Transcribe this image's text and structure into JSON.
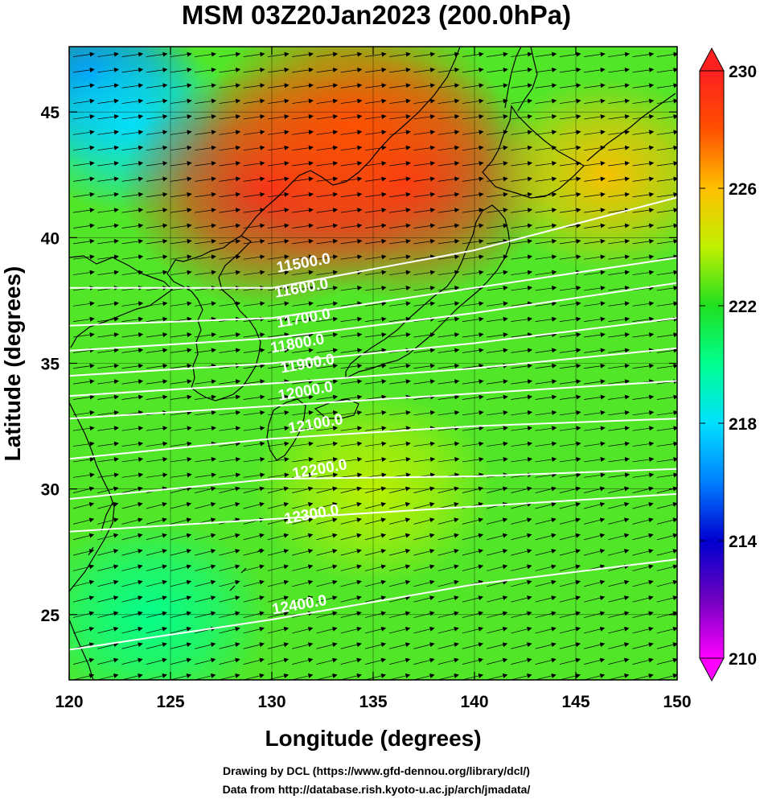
{
  "chart_data": {
    "type": "heatmap",
    "title": "MSM 03Z20Jan2023 (200.0hPa)",
    "xlabel": "Longitude (degrees)",
    "ylabel": "Latitude  (degrees)",
    "xlim": [
      120,
      150
    ],
    "ylim": [
      22.4,
      47.6
    ],
    "x_ticks": [
      120,
      125,
      130,
      135,
      140,
      145,
      150
    ],
    "y_ticks": [
      25,
      30,
      35,
      40,
      45
    ],
    "colorbar": {
      "range": [
        210,
        230
      ],
      "ticks": [
        210,
        214,
        218,
        222,
        226,
        230
      ],
      "colors": [
        "#ff00ff",
        "#7000c0",
        "#0000d0",
        "#0080ff",
        "#00e0ff",
        "#00ff90",
        "#20e020",
        "#c0f000",
        "#ffc000",
        "#ff5000",
        "#ff2020"
      ],
      "extend": "both"
    },
    "temperature_fields": [
      {
        "lon": 121,
        "lat": 46.5,
        "value": 215
      },
      {
        "lon": 123,
        "lat": 44.5,
        "value": 217
      },
      {
        "lon": 130,
        "lat": 42.0,
        "value": 229
      },
      {
        "lon": 136.5,
        "lat": 42.3,
        "value": 229
      },
      {
        "lon": 134,
        "lat": 44.5,
        "value": 228
      },
      {
        "lon": 146.5,
        "lat": 42.5,
        "value": 226
      },
      {
        "lon": 124,
        "lat": 25.0,
        "value": 220
      },
      {
        "lon": 135,
        "lat": 30.0,
        "value": 223
      }
    ],
    "contours": [
      {
        "label": "11500.0",
        "value": 11500,
        "lon": [
          120,
          130,
          140,
          150
        ],
        "lat": [
          38.0,
          38.0,
          39.5,
          41.6
        ]
      },
      {
        "label": "11600.0",
        "value": 11600,
        "lon": [
          120,
          130,
          140,
          150
        ],
        "lat": [
          36.5,
          36.8,
          38.0,
          39.2
        ]
      },
      {
        "label": "11700.0",
        "value": 11700,
        "lon": [
          120,
          130,
          140,
          150
        ],
        "lat": [
          35.5,
          36.0,
          37.0,
          38.2
        ]
      },
      {
        "label": "11800.0",
        "value": 11800,
        "lon": [
          120,
          130,
          140,
          150
        ],
        "lat": [
          34.5,
          35.0,
          35.8,
          36.8
        ]
      },
      {
        "label": "11900.0",
        "value": 11900,
        "lon": [
          120,
          130,
          140,
          150
        ],
        "lat": [
          33.7,
          34.2,
          34.8,
          35.6
        ]
      },
      {
        "label": "12000.0",
        "value": 12000,
        "lon": [
          120,
          130,
          140,
          150
        ],
        "lat": [
          32.8,
          33.3,
          33.8,
          34.3
        ]
      },
      {
        "label": "12100.0",
        "value": 12100,
        "lon": [
          120,
          130,
          140,
          150
        ],
        "lat": [
          31.2,
          32.0,
          32.5,
          32.8
        ]
      },
      {
        "label": "12200.0",
        "value": 12200,
        "lon": [
          120,
          130,
          140,
          150
        ],
        "lat": [
          29.6,
          30.4,
          30.5,
          30.8
        ]
      },
      {
        "label": "12300.0",
        "value": 12300,
        "lon": [
          120,
          130,
          140,
          150
        ],
        "lat": [
          28.3,
          28.8,
          29.3,
          29.8
        ]
      },
      {
        "label": "12400.0",
        "value": 12400,
        "lon": [
          120,
          130,
          140,
          150
        ],
        "lat": [
          23.6,
          24.8,
          26.2,
          27.2
        ]
      }
    ],
    "contour_labels": [
      {
        "label": "11500.0",
        "lon": 131.6,
        "lat": 38.8
      },
      {
        "label": "11600.0",
        "lon": 131.5,
        "lat": 37.8
      },
      {
        "label": "11700.0",
        "lon": 131.6,
        "lat": 36.6
      },
      {
        "label": "11800.0",
        "lon": 131.3,
        "lat": 35.6
      },
      {
        "label": "11900.0",
        "lon": 131.8,
        "lat": 34.8
      },
      {
        "label": "12000.0",
        "lon": 131.7,
        "lat": 33.7
      },
      {
        "label": "12100.0",
        "lon": 132.2,
        "lat": 32.4
      },
      {
        "label": "12200.0",
        "lon": 132.4,
        "lat": 30.6
      },
      {
        "label": "12300.0",
        "lon": 132.0,
        "lat": 28.8
      },
      {
        "label": "12400.0",
        "lon": 131.4,
        "lat": 25.2
      }
    ],
    "wind_vectors": "uniform westerly to west-southwesterly flow across the domain",
    "grid": true
  },
  "footer": {
    "line1": "Drawing by DCL (https://www.gfd-dennou.org/library/dcl/)",
    "line2": "Data from http://database.rish.kyoto-u.ac.jp/arch/jmadata/"
  },
  "colors": {
    "background": "#ffffff",
    "contour": "#ffffff",
    "coastline": "#000000",
    "vector": "#000000"
  }
}
